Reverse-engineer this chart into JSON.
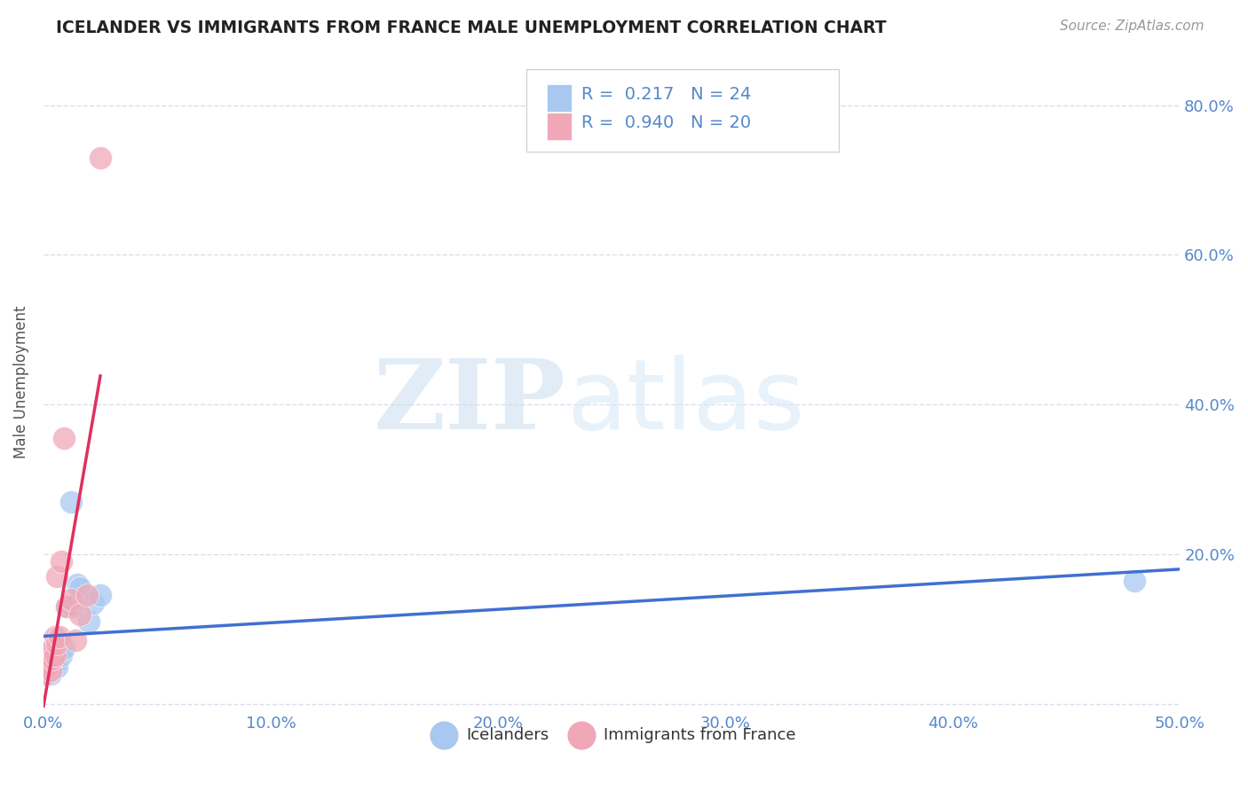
{
  "title": "ICELANDER VS IMMIGRANTS FROM FRANCE MALE UNEMPLOYMENT CORRELATION CHART",
  "source": "Source: ZipAtlas.com",
  "ylabel": "Male Unemployment",
  "xlabel": "",
  "xlim": [
    0.0,
    0.5
  ],
  "ylim": [
    -0.01,
    0.87
  ],
  "yticks": [
    0.0,
    0.2,
    0.4,
    0.6,
    0.8
  ],
  "ytick_labels": [
    "",
    "20.0%",
    "40.0%",
    "60.0%",
    "80.0%"
  ],
  "xticks": [
    0.0,
    0.1,
    0.2,
    0.3,
    0.4,
    0.5
  ],
  "xtick_labels": [
    "0.0%",
    "10.0%",
    "20.0%",
    "30.0%",
    "40.0%",
    "50.0%"
  ],
  "icelander_color": "#A8C8F0",
  "france_color": "#F0A8B8",
  "icelander_line_color": "#4070D0",
  "france_line_color": "#E03060",
  "background_color": "#FFFFFF",
  "grid_color": "#DDDDEE",
  "icelander_x": [
    0.001,
    0.002,
    0.002,
    0.003,
    0.003,
    0.003,
    0.004,
    0.004,
    0.005,
    0.005,
    0.006,
    0.006,
    0.007,
    0.008,
    0.009,
    0.01,
    0.012,
    0.013,
    0.015,
    0.016,
    0.02,
    0.022,
    0.025,
    0.48
  ],
  "icelander_y": [
    0.04,
    0.05,
    0.06,
    0.04,
    0.06,
    0.07,
    0.05,
    0.065,
    0.055,
    0.07,
    0.05,
    0.065,
    0.08,
    0.065,
    0.075,
    0.13,
    0.27,
    0.13,
    0.16,
    0.155,
    0.11,
    0.135,
    0.145,
    0.165
  ],
  "france_x": [
    0.001,
    0.002,
    0.002,
    0.003,
    0.003,
    0.004,
    0.004,
    0.005,
    0.005,
    0.006,
    0.006,
    0.007,
    0.008,
    0.009,
    0.01,
    0.012,
    0.014,
    0.016,
    0.019,
    0.025
  ],
  "france_y": [
    0.04,
    0.05,
    0.06,
    0.045,
    0.065,
    0.06,
    0.075,
    0.065,
    0.09,
    0.08,
    0.17,
    0.09,
    0.19,
    0.355,
    0.13,
    0.14,
    0.085,
    0.12,
    0.145,
    0.73
  ]
}
